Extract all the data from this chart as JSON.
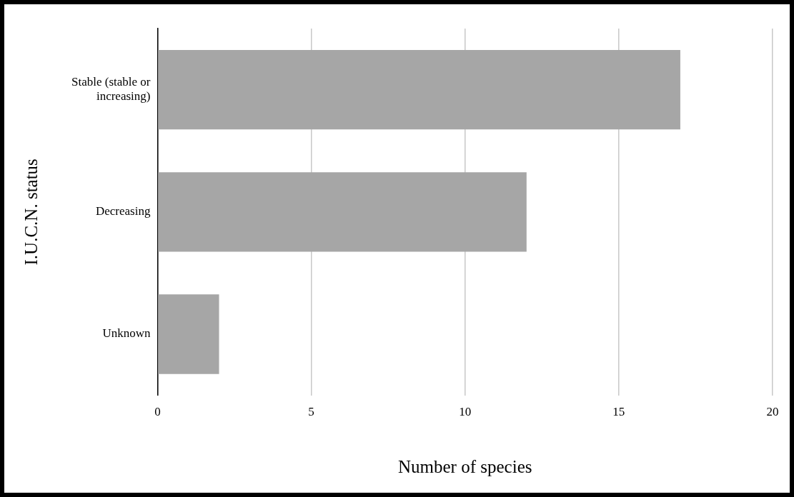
{
  "chart_data": {
    "type": "bar",
    "orientation": "horizontal",
    "xlabel": "Number of species",
    "ylabel": "I.U.C.N. status",
    "categories": [
      "Stable (stable or increasing)",
      "Decreasing",
      "Unknown"
    ],
    "values": [
      17,
      12,
      2
    ],
    "color": "#a6a6a6",
    "xlim": [
      0,
      20
    ],
    "xticks": [
      0,
      5,
      10,
      15,
      20
    ],
    "grid": "x",
    "legend": false
  }
}
